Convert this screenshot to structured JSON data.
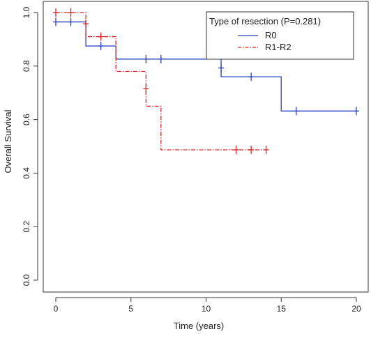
{
  "chart_data": {
    "type": "line",
    "subtype": "kaplan-meier survival curve",
    "xlabel": "Time (years)",
    "ylabel": "Overall Survival",
    "xlim": [
      0,
      20
    ],
    "ylim": [
      0,
      1.0
    ],
    "x_ticks": [
      0,
      5,
      10,
      15,
      20
    ],
    "y_ticks": [
      0.0,
      0.2,
      0.4,
      0.6,
      0.8,
      1.0
    ],
    "x_tick_labels": [
      "0",
      "5",
      "10",
      "15",
      "20"
    ],
    "y_tick_labels": [
      "0.0",
      "0.2",
      "0.4",
      "0.6",
      "0.8",
      "1.0"
    ],
    "grid": false,
    "legend": {
      "title": "Type of resection (P=0.281)",
      "placement": "top-right"
    },
    "series": [
      {
        "name": "R0",
        "color": "#2a3fbf",
        "line_style": "solid",
        "steps": [
          [
            0,
            0.965
          ],
          [
            2,
            0.875
          ],
          [
            4,
            0.826
          ],
          [
            11,
            0.76
          ],
          [
            15,
            0.632
          ],
          [
            20,
            0.632
          ]
        ],
        "censor_points": [
          [
            0,
            0.965
          ],
          [
            1,
            0.965
          ],
          [
            3,
            0.875
          ],
          [
            6,
            0.826
          ],
          [
            7,
            0.826
          ],
          [
            11,
            0.793
          ],
          [
            13,
            0.76
          ],
          [
            16,
            0.632
          ],
          [
            20,
            0.632
          ]
        ]
      },
      {
        "name": "R1-R2",
        "color": "#d62728",
        "line_style": "dash-dot",
        "steps": [
          [
            0,
            1.0
          ],
          [
            2,
            0.91
          ],
          [
            4,
            0.78
          ],
          [
            6,
            0.65
          ],
          [
            7,
            0.487
          ],
          [
            14,
            0.487
          ]
        ],
        "censor_points": [
          [
            0,
            1.0
          ],
          [
            1,
            1.0
          ],
          [
            2,
            0.958
          ],
          [
            3,
            0.91
          ],
          [
            6,
            0.715
          ],
          [
            12,
            0.487
          ],
          [
            13,
            0.487
          ],
          [
            14,
            0.487
          ]
        ]
      }
    ]
  }
}
